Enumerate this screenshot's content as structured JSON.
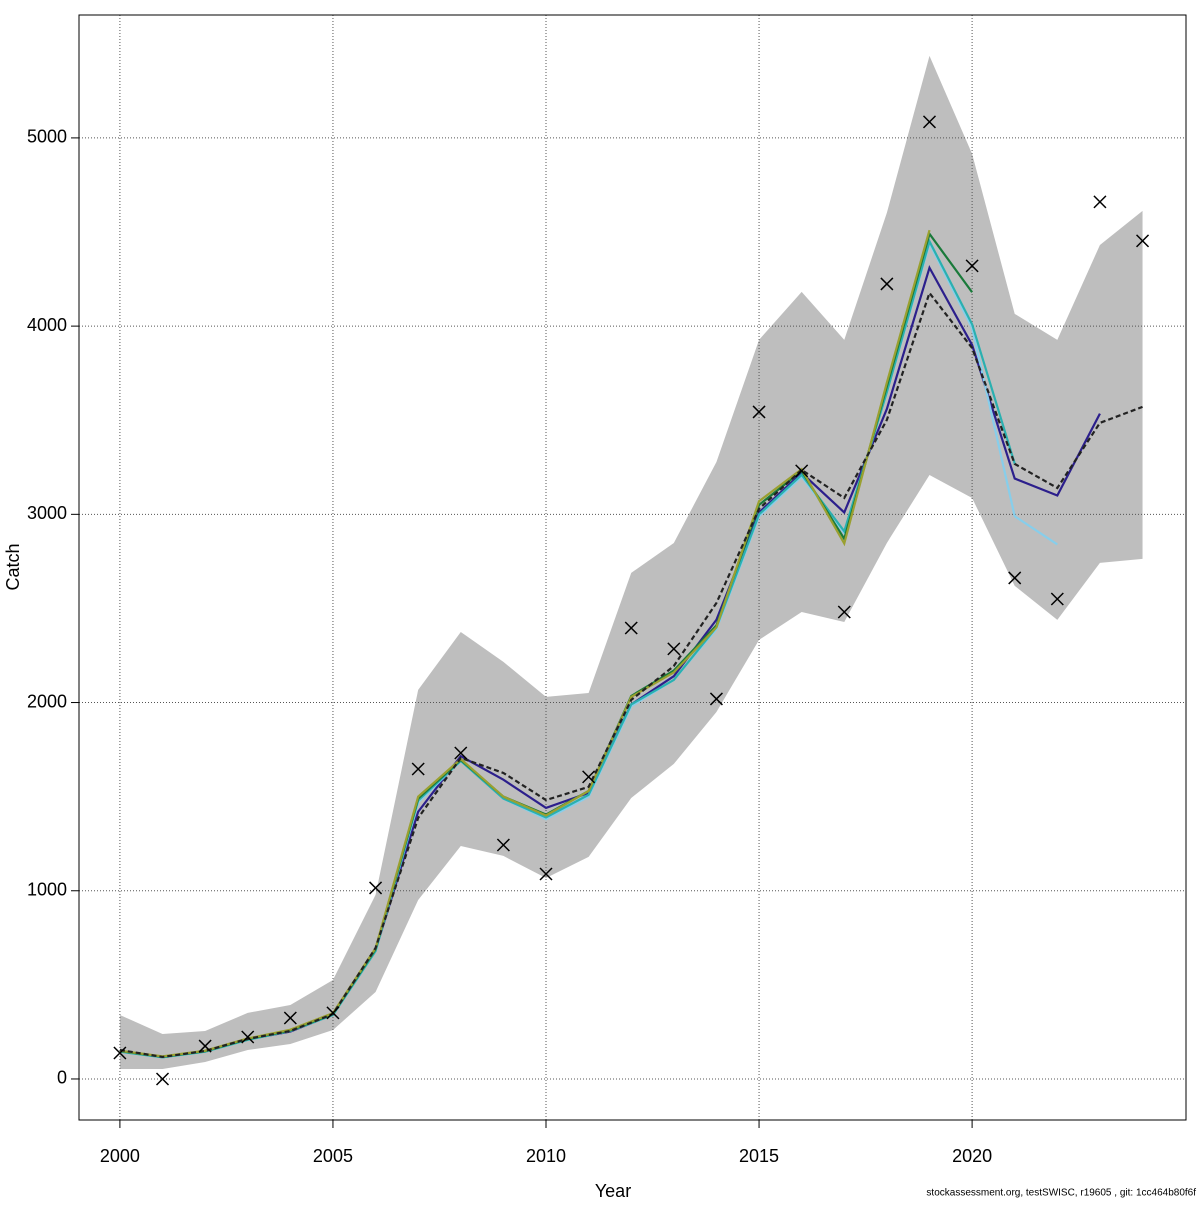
{
  "chart_data": {
    "type": "line",
    "xlabel": "Year",
    "ylabel": "Catch",
    "footer": "stockassessment.org, testSWISC, r19605 , git: 1cc464b80f6f",
    "x": [
      2000,
      2001,
      2002,
      2003,
      2004,
      2005,
      2006,
      2007,
      2008,
      2009,
      2010,
      2011,
      2012,
      2013,
      2014,
      2015,
      2016,
      2017,
      2018,
      2019,
      2020,
      2021,
      2022,
      2023,
      2024
    ],
    "xlim": [
      1999.04,
      2025.02
    ],
    "xticks": [
      2000,
      2005,
      2010,
      2015,
      2020
    ],
    "ylim": [
      -218,
      5653
    ],
    "yticks": [
      0,
      1000,
      2000,
      3000,
      4000,
      5000
    ],
    "grid": true,
    "band": {
      "color": "#bebebe",
      "upper": [
        340,
        239,
        255,
        351,
        393,
        526,
        978,
        2067,
        2375,
        2216,
        2030,
        2051,
        2689,
        2848,
        3278,
        3927,
        4182,
        3927,
        4602,
        5436,
        4915,
        4065,
        3927,
        4431,
        4612
      ],
      "lower": [
        53,
        53,
        90,
        154,
        186,
        260,
        462,
        951,
        1238,
        1185,
        1068,
        1180,
        1493,
        1674,
        1950,
        2333,
        2481,
        2428,
        2848,
        3209,
        3087,
        2620,
        2439,
        2742,
        2763
      ]
    },
    "series": [
      {
        "color": "#2c1f8c",
        "style": "solid",
        "values": [
          150,
          115,
          148,
          210,
          252,
          342,
          685,
          1420,
          1715,
          1590,
          1440,
          1520,
          1990,
          2140,
          2440,
          3010,
          3220,
          3010,
          3560,
          4310,
          3900,
          3190,
          3100,
          3535,
          null
        ]
      },
      {
        "color": "#87ceeb",
        "style": "solid",
        "values": [
          145,
          115,
          145,
          208,
          255,
          340,
          680,
          1470,
          1690,
          1490,
          1380,
          1500,
          1980,
          2120,
          2390,
          2990,
          3200,
          2900,
          3650,
          4440,
          3990,
          2990,
          2840,
          null,
          null
        ]
      },
      {
        "color": "#2ab0b0",
        "style": "solid",
        "values": [
          145,
          115,
          145,
          208,
          255,
          340,
          680,
          1480,
          1690,
          1490,
          1390,
          1510,
          1990,
          2120,
          2400,
          3000,
          3210,
          2910,
          3650,
          4450,
          4010,
          3270,
          null,
          null,
          null
        ]
      },
      {
        "color": "#1a7a3a",
        "style": "solid",
        "values": [
          148,
          118,
          148,
          212,
          258,
          345,
          690,
          1490,
          1695,
          1500,
          1405,
          1530,
          2035,
          2170,
          2410,
          3050,
          3230,
          2870,
          3680,
          4490,
          4180,
          null,
          null,
          null,
          null
        ]
      },
      {
        "color": "#9aa030",
        "style": "solid",
        "values": [
          150,
          120,
          150,
          215,
          262,
          350,
          695,
          1500,
          1700,
          1500,
          1400,
          1530,
          2030,
          2160,
          2400,
          3070,
          3240,
          2845,
          3700,
          4510,
          null,
          null,
          null,
          null,
          null
        ]
      },
      {
        "color": "#222222",
        "style": "dashed",
        "values": [
          154,
          117,
          149,
          213,
          255,
          345,
          696,
          1387,
          1706,
          1626,
          1482,
          1552,
          2014,
          2194,
          2529,
          3029,
          3236,
          3087,
          3502,
          4176,
          3884,
          3268,
          3140,
          3486,
          3571
        ]
      }
    ],
    "observed": {
      "color": "#000000",
      "values": [
        138,
        0,
        175,
        223,
        324,
        351,
        1015,
        1647,
        1732,
        1243,
        1089,
        1605,
        2396,
        2285,
        2019,
        3544,
        3231,
        2481,
        4224,
        5085,
        4320,
        2662,
        2550,
        4660,
        4453
      ]
    }
  }
}
